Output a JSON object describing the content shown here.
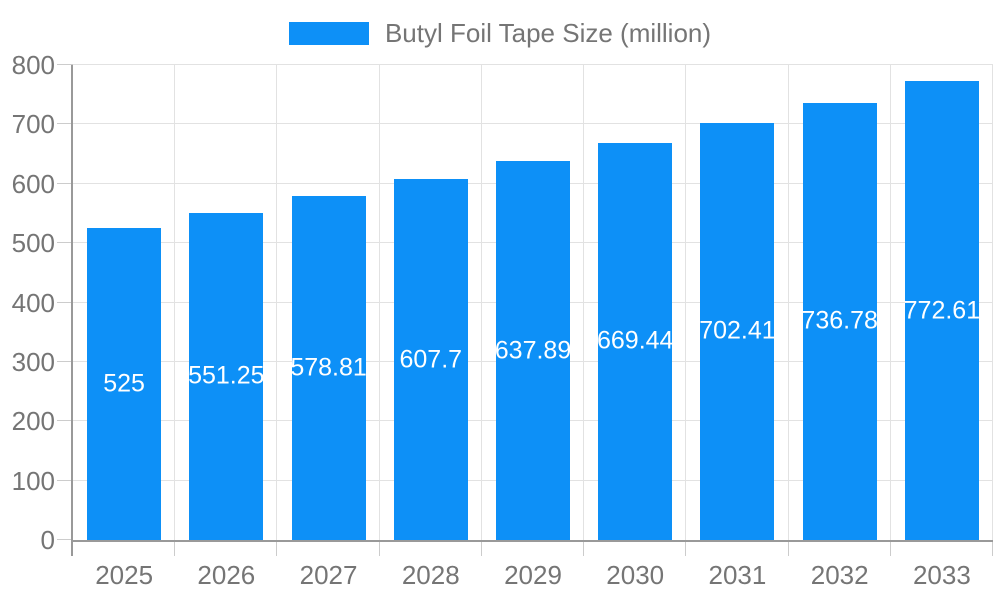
{
  "chart_data": {
    "type": "bar",
    "title": "Butyl Foil Tape Size (million)",
    "legend": {
      "position": "top",
      "label": "Butyl Foil Tape Size (million)"
    },
    "categories": [
      "2025",
      "2026",
      "2027",
      "2028",
      "2029",
      "2030",
      "2031",
      "2032",
      "2033"
    ],
    "values": [
      525,
      551.25,
      578.81,
      607.7,
      637.89,
      669.44,
      702.41,
      736.78,
      772.61
    ],
    "value_labels": [
      "525",
      "551.25",
      "578.81",
      "607.7",
      "637.89",
      "669.44",
      "702.41",
      "736.78",
      "772.61"
    ],
    "xlabel": "",
    "ylabel": "",
    "ylim": [
      0,
      800
    ],
    "ytick_step": 100,
    "yticks": [
      "0",
      "100",
      "200",
      "300",
      "400",
      "500",
      "600",
      "700",
      "800"
    ],
    "grid": true,
    "colors": {
      "bar": "#0D90F7",
      "axis": "#999999",
      "grid": "#E2E2E2",
      "tick": "#CCCCCC",
      "tick_label": "#757575",
      "bar_label": "#FFFFFF",
      "background": "#FFFFFF"
    }
  }
}
